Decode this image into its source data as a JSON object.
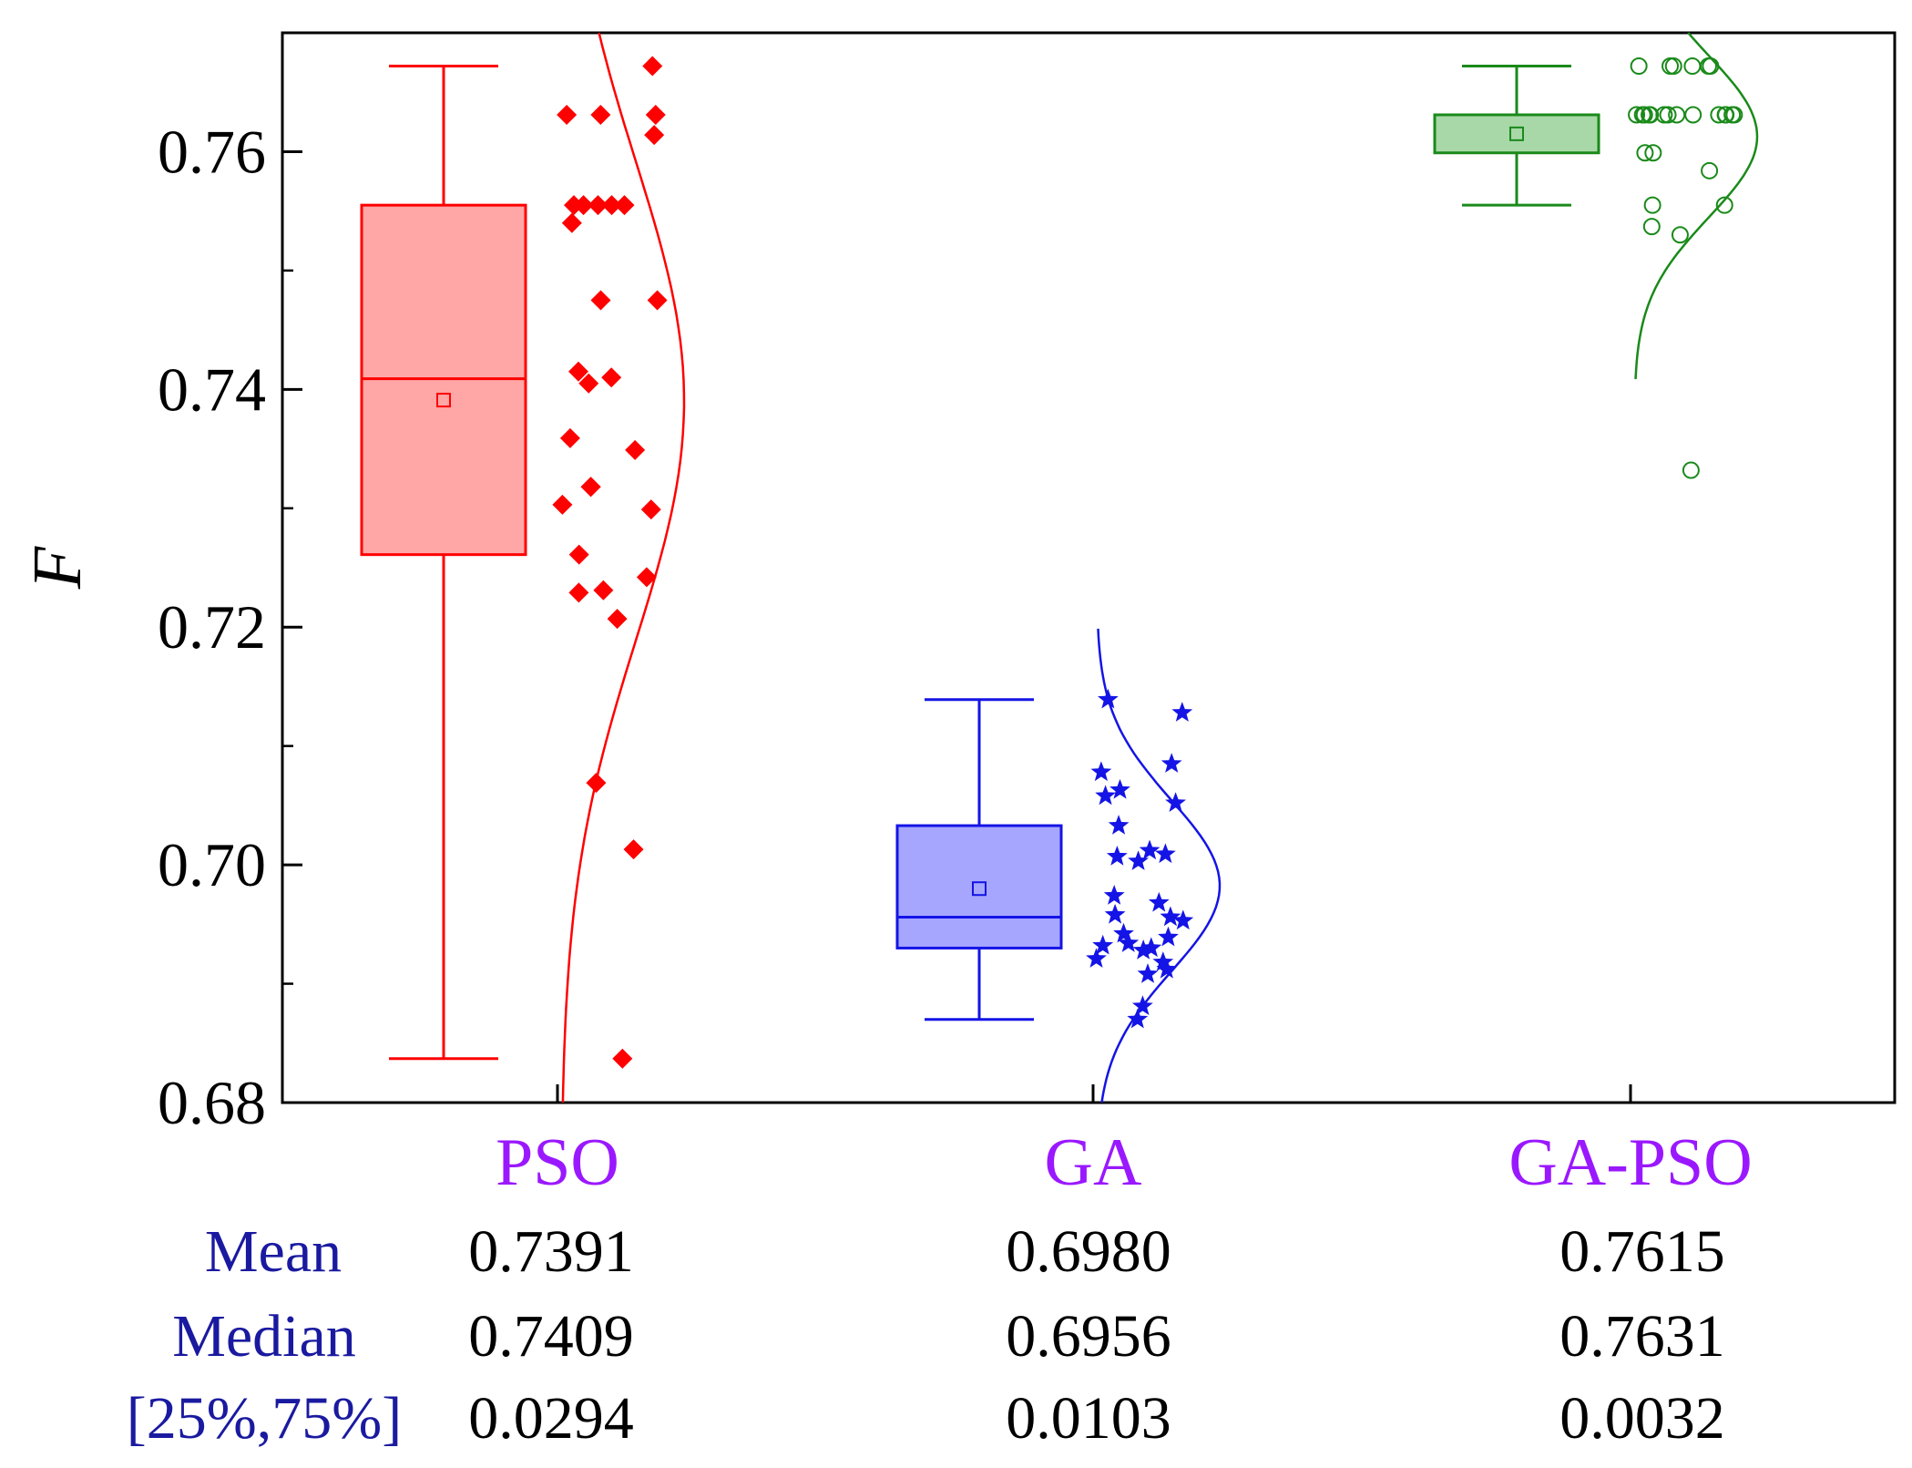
{
  "chart_data": {
    "type": "box",
    "ylabel": "F",
    "ylim": [
      0.68,
      0.77
    ],
    "yticks": [
      "0.68",
      "0.70",
      "0.72",
      "0.74",
      "0.76"
    ],
    "categories": [
      "PSO",
      "GA",
      "GA-PSO"
    ],
    "category_color": "#9a18ff",
    "series": [
      {
        "name": "PSO",
        "color": "#ff0000",
        "fill": "#ffa6a6",
        "marker": "diamond",
        "whisker_low": 0.6837,
        "q1": 0.7261,
        "median": 0.7409,
        "q3": 0.7555,
        "whisker_high": 0.7672,
        "mean": 0.7391,
        "points": [
          0.7672,
          0.7631,
          0.7631,
          0.7631,
          0.7614,
          0.7555,
          0.7555,
          0.7555,
          0.7555,
          0.7555,
          0.754,
          0.7475,
          0.7475,
          0.7415,
          0.741,
          0.7405,
          0.7359,
          0.7349,
          0.7318,
          0.7318,
          0.7303,
          0.7299,
          0.7261,
          0.7242,
          0.7231,
          0.7229,
          0.7207,
          0.7069,
          0.7013,
          0.6837
        ]
      },
      {
        "name": "GA",
        "color": "#1414e6",
        "fill": "#a6a6ff",
        "marker": "star",
        "whisker_low": 0.687,
        "q1": 0.693,
        "median": 0.6956,
        "q3": 0.7033,
        "whisker_high": 0.7139,
        "mean": 0.698,
        "points": [
          0.7139,
          0.7128,
          0.7085,
          0.7078,
          0.7063,
          0.7058,
          0.7052,
          0.7033,
          0.7012,
          0.7009,
          0.7007,
          0.7003,
          0.6974,
          0.6968,
          0.6958,
          0.6956,
          0.6953,
          0.6942,
          0.6939,
          0.6934,
          0.6932,
          0.693,
          0.6928,
          0.6921,
          0.6918,
          0.6912,
          0.6908,
          0.6881,
          0.687
        ]
      },
      {
        "name": "GA-PSO",
        "color": "#1a8a1a",
        "fill": "#a8d8a8",
        "marker": "circle",
        "whisker_low": 0.7555,
        "q1": 0.7599,
        "median": 0.7631,
        "q3": 0.7631,
        "whisker_high": 0.7672,
        "mean": 0.7615,
        "points": [
          0.7672,
          0.7672,
          0.7672,
          0.7672,
          0.7672,
          0.7672,
          0.7631,
          0.7631,
          0.7631,
          0.7631,
          0.7631,
          0.7631,
          0.7631,
          0.7631,
          0.7631,
          0.7631,
          0.7631,
          0.7631,
          0.7631,
          0.7631,
          0.7599,
          0.7599,
          0.7584,
          0.7555,
          0.7555,
          0.7537,
          0.753,
          0.7332
        ]
      }
    ],
    "stats_table": {
      "rows": [
        {
          "label": "Mean",
          "values": [
            "0.7391",
            "0.6980",
            "0.7615"
          ]
        },
        {
          "label": "Median",
          "values": [
            "0.7409",
            "0.6956",
            "0.7631"
          ]
        },
        {
          "label": "[25%,75%]",
          "values": [
            "0.0294",
            "0.0103",
            "0.0032"
          ]
        }
      ]
    }
  }
}
